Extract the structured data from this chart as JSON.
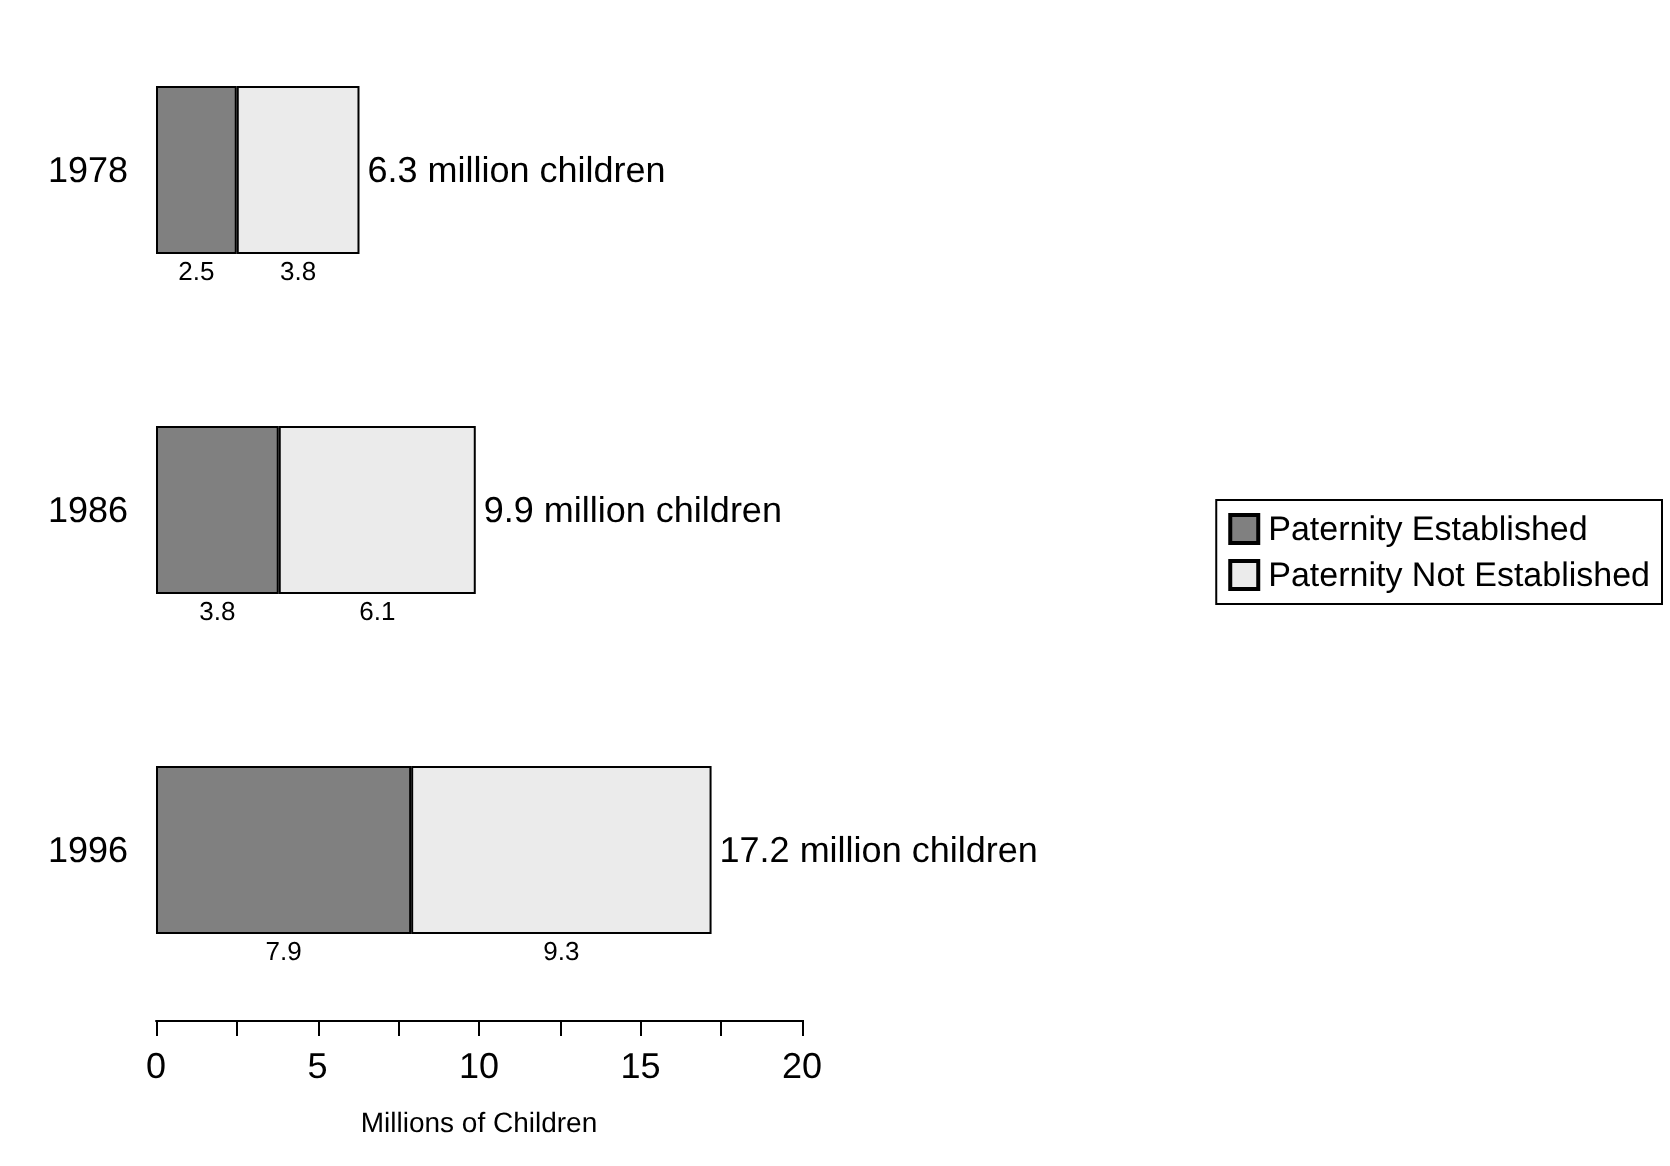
{
  "chart_data": {
    "type": "bar",
    "orientation": "horizontal",
    "stacked": true,
    "categories": [
      "1978",
      "1986",
      "1996"
    ],
    "series": [
      {
        "name": "Paternity Established",
        "color": "#808080",
        "values": [
          2.5,
          3.8,
          7.9
        ]
      },
      {
        "name": "Paternity Not Established",
        "color": "#ebebeb",
        "values": [
          3.8,
          6.1,
          9.3
        ]
      }
    ],
    "totals": [
      "6.3 million children",
      "9.9 million children",
      "17.2 million children"
    ],
    "data_labels": true,
    "xlabel": "Millions of Children",
    "xlim": [
      0,
      20
    ],
    "xticks": [
      0,
      {
        "value": 2.5,
        "label": null
      },
      5,
      {
        "value": 7.5,
        "label": null
      },
      10,
      {
        "value": 12.5,
        "label": null
      },
      15,
      {
        "value": 17.5,
        "label": null
      },
      20
    ],
    "grid": false,
    "legend": "right"
  }
}
